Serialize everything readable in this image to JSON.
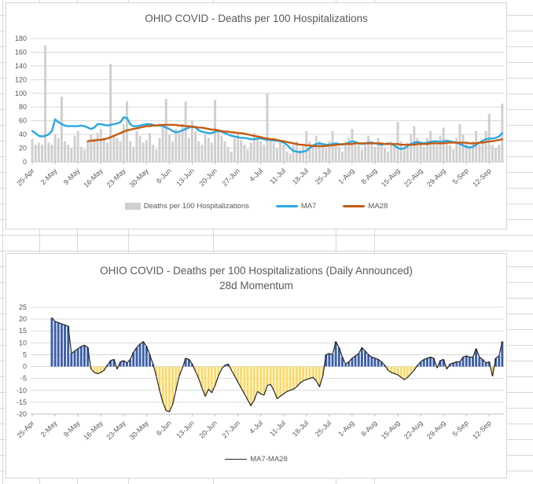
{
  "sheet": {
    "gridline_color": "#d8d8d8",
    "column_line_positions": [
      3,
      50,
      98,
      163,
      271,
      427,
      476
    ]
  },
  "styles": {
    "text_color": "#595959",
    "plot_gridline_color": "#d9d9d9",
    "axis_color": "#bfbfbf"
  },
  "chart_data": [
    {
      "type": "combo",
      "title": "OHIO COVID - Deaths per 100 Hospitalizations",
      "x_tick_labels": [
        "25-Apr",
        "2-May",
        "9-May",
        "16-May",
        "23-May",
        "30-May",
        "6-Jun",
        "13-Jun",
        "20-Jun",
        "27-Jun",
        "4-Jul",
        "11-Jul",
        "18-Jul",
        "25-Jul",
        "1-Aug",
        "8-Aug",
        "15-Aug",
        "22-Aug",
        "29-Aug",
        "5-Sep",
        "12-Sep"
      ],
      "tick_interval_days": 7,
      "ylim": [
        0,
        180
      ],
      "yticks": [
        0,
        20,
        40,
        60,
        80,
        100,
        120,
        140,
        160,
        180
      ],
      "grid": true,
      "legend_position": "bottom",
      "series": [
        {
          "name": "Deaths per 100 Hospitalizations",
          "type": "bar",
          "color": "#d0cece",
          "values": [
            33,
            25,
            28,
            25,
            170,
            28,
            25,
            40,
            35,
            95,
            30,
            25,
            20,
            38,
            45,
            22,
            18,
            30,
            40,
            35,
            42,
            48,
            35,
            28,
            143,
            40,
            35,
            30,
            55,
            88,
            30,
            22,
            45,
            38,
            28,
            32,
            42,
            25,
            18,
            35,
            50,
            92,
            40,
            30,
            48,
            42,
            55,
            88,
            35,
            60,
            45,
            30,
            25,
            40,
            35,
            28,
            90,
            45,
            38,
            30,
            22,
            15,
            35,
            40,
            32,
            25,
            18,
            28,
            42,
            35,
            30,
            25,
            100,
            35,
            28,
            20,
            32,
            25,
            15,
            12,
            25,
            30,
            18,
            25,
            45,
            30,
            25,
            38,
            30,
            25,
            20,
            30,
            45,
            28,
            22,
            15,
            30,
            35,
            48,
            30,
            25,
            18,
            28,
            38,
            30,
            22,
            35,
            28,
            20,
            15,
            30,
            25,
            58,
            30,
            20,
            28,
            40,
            52,
            35,
            28,
            22,
            35,
            45,
            30,
            25,
            38,
            50,
            32,
            25,
            18,
            35,
            55,
            40,
            28,
            20,
            30,
            45,
            25,
            30,
            45,
            70,
            25,
            20,
            25,
            85
          ]
        },
        {
          "name": "MA7",
          "type": "line",
          "color": "#29a8e0",
          "values": [
            45,
            42,
            38,
            37,
            38,
            40,
            45,
            62,
            58,
            55,
            53,
            52,
            52,
            52,
            52,
            53,
            52,
            50,
            48,
            50,
            55,
            55,
            54,
            53,
            54,
            55,
            56,
            58,
            65,
            64,
            55,
            52,
            52,
            53,
            54,
            55,
            55,
            54,
            53,
            53,
            52,
            50,
            48,
            45,
            43,
            44,
            46,
            48,
            50,
            52,
            50,
            46,
            44,
            43,
            42,
            42,
            44,
            45,
            44,
            42,
            40,
            38,
            37,
            36,
            35,
            35,
            34,
            33,
            33,
            34,
            34,
            33,
            32,
            32,
            31,
            31,
            30,
            28,
            25,
            20,
            16,
            15,
            14,
            15,
            16,
            20,
            24,
            26,
            27,
            26,
            25,
            25,
            26,
            27,
            26,
            25,
            26,
            28,
            30,
            29,
            27,
            26,
            27,
            28,
            28,
            27,
            26,
            25,
            26,
            27,
            26,
            24,
            20,
            19,
            20,
            23,
            26,
            28,
            29,
            28,
            27,
            28,
            29,
            30,
            30,
            29,
            30,
            31,
            30,
            29,
            28,
            26,
            24,
            22,
            21,
            22,
            25,
            28,
            31,
            33,
            34,
            34,
            35,
            37,
            42
          ]
        },
        {
          "name": "MA28",
          "type": "line",
          "color": "#c55a11",
          "values": [
            null,
            null,
            null,
            null,
            null,
            null,
            null,
            null,
            null,
            null,
            null,
            null,
            null,
            null,
            null,
            null,
            null,
            30,
            31,
            31,
            32,
            32,
            33,
            34,
            36,
            38,
            40,
            42,
            44,
            46,
            47,
            48,
            49,
            50,
            51,
            52,
            52,
            53,
            53,
            54,
            54,
            54,
            54,
            54,
            54,
            53,
            53,
            52,
            52,
            51,
            51,
            50,
            50,
            49,
            48,
            47,
            47,
            46,
            45,
            44,
            44,
            43,
            43,
            42,
            42,
            41,
            40,
            39,
            38,
            37,
            36,
            35,
            34,
            33,
            33,
            32,
            31,
            30,
            29,
            28,
            27,
            26,
            25,
            25,
            24,
            24,
            23,
            23,
            23,
            23,
            23,
            24,
            24,
            25,
            25,
            26,
            26,
            26,
            26,
            27,
            27,
            27,
            27,
            27,
            27,
            27,
            27,
            27,
            26,
            26,
            26,
            26,
            26,
            25,
            25,
            25,
            25,
            25,
            26,
            26,
            26,
            26,
            27,
            27,
            27,
            27,
            27,
            28,
            28,
            28,
            28,
            28,
            28,
            28,
            27,
            27,
            27,
            28,
            28,
            29,
            30,
            30,
            31,
            32,
            33
          ]
        }
      ]
    },
    {
      "type": "bar",
      "title": "OHIO COVID - Deaths per 100 Hospitalizations (Daily Announced)",
      "subtitle": "28d Momentum",
      "x_tick_labels": [
        "25-Apr",
        "2-May",
        "9-May",
        "16-May",
        "23-May",
        "30-May",
        "6-Jun",
        "13-Jun",
        "20-Jun",
        "27-Jun",
        "4-Jul",
        "11-Jul",
        "18-Jul",
        "25-Jul",
        "1-Aug",
        "8-Aug",
        "15-Aug",
        "22-Aug",
        "29-Aug",
        "5-Sep",
        "12-Sep"
      ],
      "tick_interval_days": 7,
      "ylim": [
        -20,
        25
      ],
      "yticks": [
        25,
        20,
        15,
        10,
        5,
        0,
        -5,
        -10,
        -15,
        -20
      ],
      "grid": true,
      "legend_position": "bottom",
      "series": [
        {
          "name": "MA7-MA28",
          "type": "bar+line",
          "positive_color": "#3b5fa8",
          "negative_color": "#ffd966",
          "line_color": "#262626",
          "values": [
            null,
            null,
            null,
            null,
            null,
            null,
            20.5,
            19,
            18.5,
            18,
            17.5,
            17,
            5.5,
            6.5,
            7.5,
            8.5,
            9,
            8,
            -1,
            -2.5,
            -3,
            -2.5,
            -1.5,
            0.5,
            2.5,
            3,
            -1,
            2,
            2.5,
            1.5,
            3,
            6,
            8,
            9.5,
            10.5,
            8.5,
            5,
            1,
            -4,
            -10,
            -15,
            -18.5,
            -19,
            -16,
            -10,
            -4,
            -0.5,
            3.5,
            3,
            1,
            -2,
            -5,
            -9,
            -12.5,
            -9.5,
            -11,
            -8,
            -4,
            -1,
            0.5,
            1,
            -1.5,
            -4,
            -6.5,
            -9,
            -11.5,
            -14,
            -16.5,
            -14,
            -10.5,
            -11.5,
            -12,
            -8,
            -7.5,
            -10,
            -13.5,
            -12.5,
            -11.5,
            -10.5,
            -10,
            -9.5,
            -8.5,
            -7,
            -6,
            -5.5,
            -5,
            -4.5,
            -6,
            -8.5,
            -4,
            5,
            5.5,
            5,
            10.5,
            8,
            4,
            1,
            2,
            3.5,
            4.5,
            5.5,
            8,
            6.5,
            5,
            4,
            3.5,
            3,
            2,
            0.5,
            -1.5,
            -2.5,
            -3,
            -3.5,
            -4.5,
            -5.5,
            -4.5,
            -3,
            -1.5,
            0.5,
            2,
            3,
            3.5,
            4,
            3.5,
            -0.5,
            2.5,
            3,
            -1,
            1,
            1.5,
            2,
            2,
            4,
            4.5,
            4,
            4,
            7.5,
            4,
            3,
            1.5,
            2,
            -4,
            3.5,
            4.5,
            10.5
          ]
        }
      ]
    }
  ]
}
